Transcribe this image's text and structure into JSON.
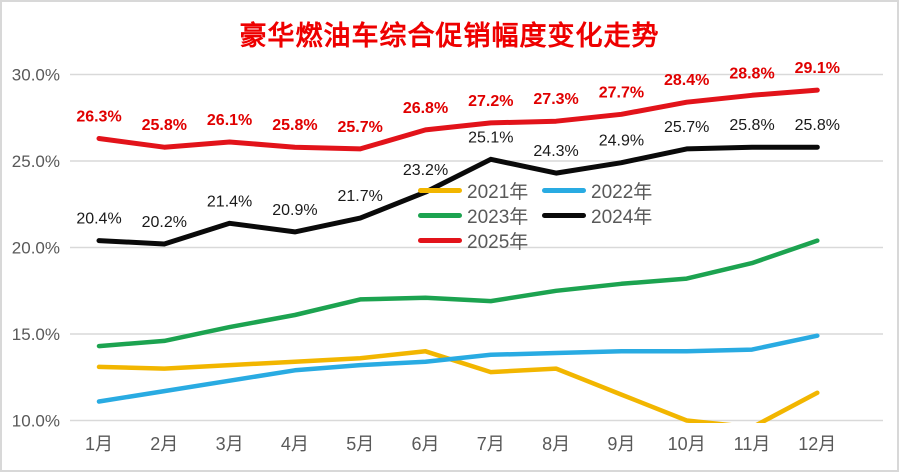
{
  "title": "豪华燃油车综合促销幅度变化走势",
  "colors": {
    "title": "#ee0000",
    "axis_text": "#595959",
    "gridline": "#d9d9d9",
    "background": "#ffffff",
    "border": "#d8d8d8"
  },
  "chart_data": {
    "type": "line",
    "title": "豪华燃油车综合促销幅度变化走势",
    "x_categories": [
      "1月",
      "2月",
      "3月",
      "4月",
      "5月",
      "6月",
      "7月",
      "8月",
      "9月",
      "10月",
      "11月",
      "12月"
    ],
    "ylabel": "",
    "xlabel": "",
    "ylim": [
      10,
      30
    ],
    "y_ticks": [
      {
        "value": 30,
        "label": "30.0%"
      },
      {
        "value": 25,
        "label": "25.0%"
      },
      {
        "value": 20,
        "label": "20.0%"
      },
      {
        "value": 15,
        "label": "15.0%"
      },
      {
        "value": 10,
        "label": "10.0%"
      }
    ],
    "grid": true,
    "legend_position": "center-middle",
    "series": [
      {
        "name": "2021年",
        "color": "#f2b600",
        "values": [
          13.1,
          13.0,
          13.2,
          13.4,
          13.6,
          14.0,
          12.8,
          13.0,
          11.5,
          10.0,
          9.6,
          11.6
        ]
      },
      {
        "name": "2022年",
        "color": "#29abe2",
        "values": [
          11.1,
          11.7,
          12.3,
          12.9,
          13.2,
          13.4,
          13.8,
          13.9,
          14.0,
          14.0,
          14.1,
          14.9
        ]
      },
      {
        "name": "2023年",
        "color": "#1ca350",
        "values": [
          14.3,
          14.6,
          15.4,
          16.1,
          17.0,
          17.1,
          16.9,
          17.5,
          17.9,
          18.2,
          19.1,
          20.4
        ]
      },
      {
        "name": "2024年",
        "color": "#0a0a0a",
        "values": [
          20.4,
          20.2,
          21.4,
          20.9,
          21.7,
          23.2,
          25.1,
          24.3,
          24.9,
          25.7,
          25.8,
          25.8
        ],
        "labels": [
          "20.4%",
          "20.2%",
          "21.4%",
          "20.9%",
          "21.7%",
          "23.2%",
          "25.1%",
          "24.3%",
          "24.9%",
          "25.7%",
          "25.8%",
          "25.8%"
        ],
        "label_color": "#1a1a1a",
        "label_bold": false
      },
      {
        "name": "2025年",
        "color": "#e2131a",
        "values": [
          26.3,
          25.8,
          26.1,
          25.8,
          25.7,
          26.8,
          27.2,
          27.3,
          27.7,
          28.4,
          28.8,
          29.1
        ],
        "labels": [
          "26.3%",
          "25.8%",
          "26.1%",
          "25.8%",
          "25.7%",
          "26.8%",
          "27.2%",
          "27.3%",
          "27.7%",
          "28.4%",
          "28.8%",
          "29.1%"
        ],
        "label_color": "#e00000",
        "label_bold": true
      }
    ]
  }
}
